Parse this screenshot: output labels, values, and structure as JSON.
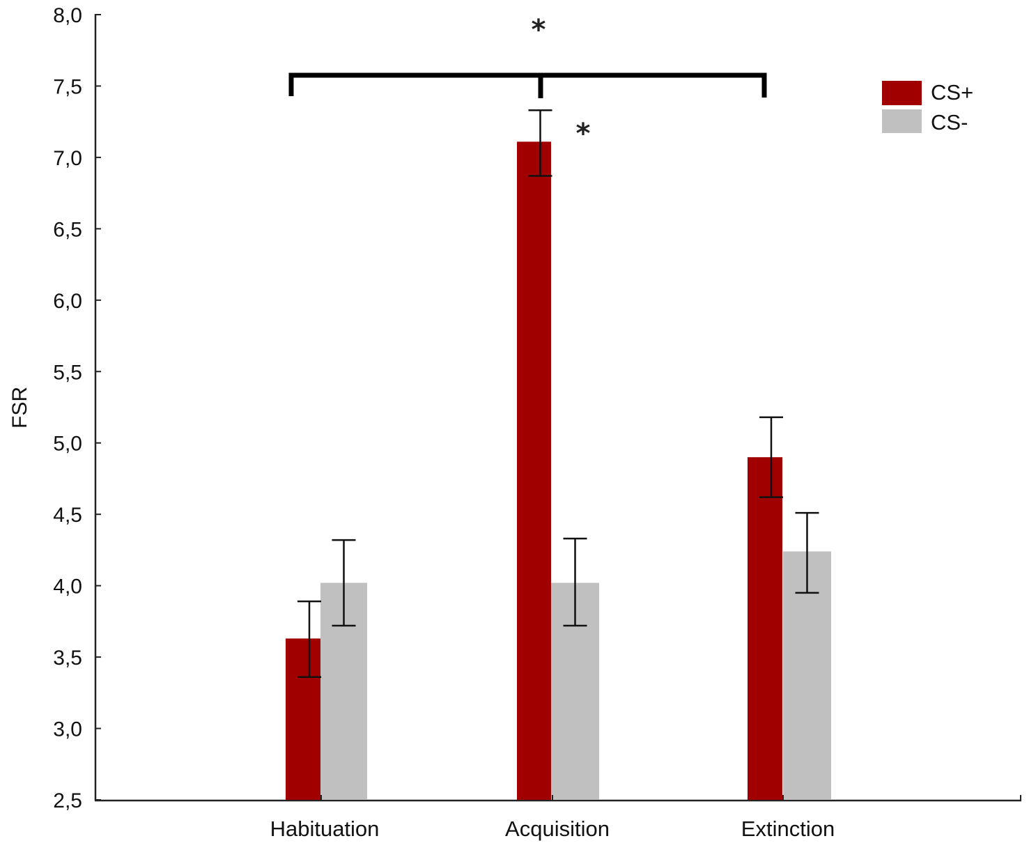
{
  "chart_data": {
    "type": "bar",
    "title": "",
    "xlabel": "",
    "ylabel": "FSR",
    "ylim": [
      2.5,
      8.0
    ],
    "yticks": [
      "2,5",
      "3,0",
      "3,5",
      "4,0",
      "4,5",
      "5,0",
      "5,5",
      "6,0",
      "6,5",
      "7,0",
      "7,5",
      "8,0"
    ],
    "grid": false,
    "legend_position": "top-right",
    "categories": [
      "Habituation",
      "Acquisition",
      "Extinction"
    ],
    "series": [
      {
        "name": "CS+",
        "color": "#a00000",
        "values": [
          3.63,
          7.11,
          4.9
        ],
        "error_upper": [
          3.89,
          7.33,
          5.18
        ],
        "error_lower": [
          3.36,
          6.87,
          4.62
        ]
      },
      {
        "name": "CS-",
        "color": "#c0c0c0",
        "values": [
          4.02,
          4.02,
          4.24
        ],
        "error_upper": [
          4.32,
          4.33,
          4.51
        ],
        "error_lower": [
          3.72,
          3.72,
          3.95
        ]
      }
    ],
    "annotations": [
      {
        "type": "significance-bracket",
        "label": "*",
        "spans": [
          "Habituation",
          "Acquisition",
          "Extinction"
        ],
        "series": "CS+"
      },
      {
        "type": "significance-marker",
        "label": "*",
        "category": "Acquisition",
        "note": "CS+ vs CS-"
      }
    ]
  },
  "legend": {
    "items": [
      {
        "label": "CS+",
        "color": "#a00000"
      },
      {
        "label": "CS-",
        "color": "#c0c0c0"
      }
    ]
  },
  "annotations": {
    "bracket_star": "*",
    "acquisition_star": "*"
  },
  "axis": {
    "y_title": "FSR",
    "y_ticks": [
      "2,5",
      "3,0",
      "3,5",
      "4,0",
      "4,5",
      "5,0",
      "5,5",
      "6,0",
      "6,5",
      "7,0",
      "7,5",
      "8,0"
    ],
    "x_categories": [
      "Habituation",
      "Acquisition",
      "Extinction"
    ]
  }
}
